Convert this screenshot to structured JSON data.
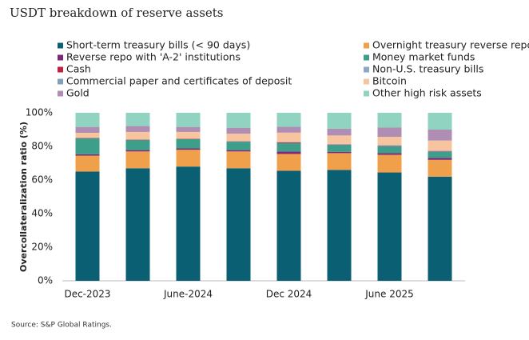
{
  "chart_data": {
    "type": "stacked_bar",
    "title": "USDT breakdown of reserve assets",
    "ylabel": "Overcollateralization ratio (%)",
    "source": "Source: S&P Global Ratings.",
    "categories": [
      "Dec-2023",
      null,
      "June-2024",
      null,
      "Dec 2024",
      null,
      "June 2025",
      null
    ],
    "series": [
      {
        "name": "Short-term treasury bills (< 90 days)",
        "color": "#0b5f73",
        "values": [
          65,
          67,
          68,
          67,
          65.5,
          66,
          64.5,
          62
        ]
      },
      {
        "name": "Overnight treasury reverse repo",
        "color": "#f0a04b",
        "values": [
          9.5,
          10,
          10,
          10,
          10,
          10,
          10.5,
          10
        ]
      },
      {
        "name": "Reverse repo with 'A-2' institutions",
        "color": "#7b2a7a",
        "values": [
          0.8,
          0.8,
          0.8,
          0.8,
          1.5,
          0.8,
          1,
          1.2
        ]
      },
      {
        "name": "Money market funds",
        "color": "#3d9e8a",
        "values": [
          9.5,
          6,
          5.5,
          5,
          5,
          4,
          4,
          3.5
        ]
      },
      {
        "name": "Cash",
        "color": "#c0213f",
        "values": [
          0.2,
          0.2,
          0.2,
          0.2,
          0.5,
          0.2,
          0.2,
          0.3
        ]
      },
      {
        "name": "Non-U.S. treasury bills",
        "color": "#8fa7c4",
        "values": [
          0.1,
          0.1,
          0.1,
          0.1,
          0.2,
          0.5,
          0.5,
          0.5
        ]
      },
      {
        "name": "Commercial paper and certificates of deposit",
        "color": "#7fa0b8",
        "values": [
          0,
          0,
          0,
          0,
          0,
          0,
          0,
          0
        ]
      },
      {
        "name": "Bitcoin",
        "color": "#f6c49e",
        "values": [
          3,
          4.5,
          4,
          4.5,
          5.5,
          5,
          5,
          6
        ]
      },
      {
        "name": "Gold",
        "color": "#b08db3",
        "values": [
          3.5,
          3.5,
          3,
          3.5,
          3.5,
          4,
          5.5,
          6.5
        ]
      },
      {
        "name": "Other high risk assets",
        "color": "#8fd3c0",
        "values": [
          8.4,
          7.9,
          8.4,
          8.9,
          8.3,
          9.5,
          8.8,
          10
        ]
      }
    ],
    "ylim": [
      0,
      100
    ],
    "yticks": [
      {
        "value": 0,
        "label": "0%"
      },
      {
        "value": 20,
        "label": "20%"
      },
      {
        "value": 40,
        "label": "40%"
      },
      {
        "value": 60,
        "label": "60%"
      },
      {
        "value": 80,
        "label": "80%"
      },
      {
        "value": 100,
        "label": "100%"
      }
    ],
    "grid": false
  }
}
